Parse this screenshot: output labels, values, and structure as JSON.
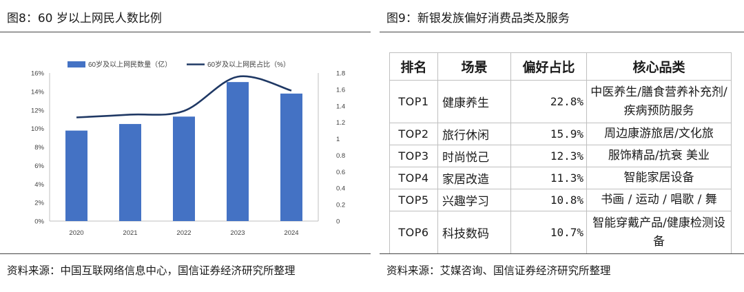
{
  "left_panel": {
    "title": "图8：60 岁以上网民人数比例",
    "source": "资料来源：中国互联网络信息中心，国信证券经济研究所整理"
  },
  "right_panel": {
    "title": "图9：新银发族偏好消费品类及服务",
    "source": "资料来源：艾媒咨询、国信证券经济研究所整理",
    "table": {
      "headers": [
        "排名",
        "场景",
        "偏好占比",
        "核心品类"
      ],
      "rows": [
        {
          "rank": "TOP1",
          "scene": "健康养生",
          "share": "22.8%",
          "category": "中医养生/膳食营养补充剂/疾病预防服务"
        },
        {
          "rank": "TOP2",
          "scene": "旅行休闲",
          "share": "15.9%",
          "category": "周边康游旅居/文化旅"
        },
        {
          "rank": "TOP3",
          "scene": "时尚悦己",
          "share": "12.3%",
          "category": "服饰精品/抗衰 美业"
        },
        {
          "rank": "TOP4",
          "scene": "家居改造",
          "share": "11.3%",
          "category": "智能家居设备"
        },
        {
          "rank": "TOP5",
          "scene": "兴趣学习",
          "share": "10.8%",
          "category": "书画 / 运动 / 唱歌 / 舞"
        },
        {
          "rank": "TOP6",
          "scene": "科技数码",
          "share": "10.7%",
          "category": "智能穿戴产品/健康检测设备"
        }
      ]
    }
  },
  "chart_data": {
    "type": "bar",
    "categories": [
      "2020",
      "2021",
      "2022",
      "2023",
      "2024"
    ],
    "series": [
      {
        "name": "60岁及以上网民数量（亿）",
        "type": "bar",
        "axis": "right",
        "values": [
          1.1,
          1.18,
          1.27,
          1.69,
          1.55
        ],
        "color": "#4472C4"
      },
      {
        "name": "60岁及以上网民占比（%）",
        "type": "line",
        "axis": "left",
        "values": [
          11.2,
          11.5,
          11.9,
          15.6,
          14.1
        ],
        "color": "#1F3864"
      }
    ],
    "y_left": {
      "min": 0,
      "max": 16,
      "ticks": [
        "0%",
        "2%",
        "4%",
        "6%",
        "8%",
        "10%",
        "12%",
        "14%",
        "16%"
      ]
    },
    "y_right": {
      "min": 0,
      "max": 1.8,
      "ticks": [
        "0",
        "0.2",
        "0.4",
        "0.6",
        "0.8",
        "1",
        "1.2",
        "1.4",
        "1.6",
        "1.8"
      ]
    },
    "legend_position": "top",
    "grid": false
  }
}
